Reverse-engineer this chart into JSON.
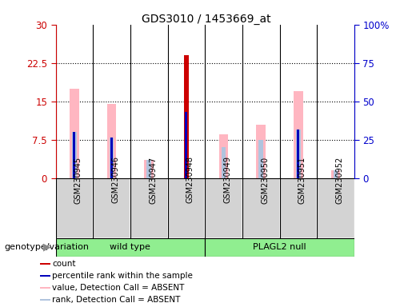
{
  "title": "GDS3010 / 1453669_at",
  "samples": [
    "GSM230945",
    "GSM230946",
    "GSM230947",
    "GSM230948",
    "GSM230949",
    "GSM230950",
    "GSM230951",
    "GSM230952"
  ],
  "ylim_left": [
    0,
    30
  ],
  "ylim_right": [
    0,
    100
  ],
  "yticks_left": [
    0,
    7.5,
    15,
    22.5,
    30
  ],
  "ytick_labels_left": [
    "0",
    "7.5",
    "15",
    "22.5",
    "30"
  ],
  "yticks_right": [
    0,
    25,
    50,
    75,
    100
  ],
  "ytick_labels_right": [
    "0",
    "25",
    "50",
    "75",
    "100%"
  ],
  "count_values": [
    0,
    0,
    0,
    24.0,
    0,
    0,
    0,
    0
  ],
  "count_color": "#cc0000",
  "rank_values": [
    9.0,
    8.0,
    0,
    13.0,
    0,
    0,
    9.5,
    0
  ],
  "rank_color": "#0000bb",
  "absent_value_values": [
    17.5,
    14.5,
    3.5,
    0,
    8.5,
    10.5,
    17.0,
    1.5
  ],
  "absent_value_color": "#ffb6c1",
  "absent_rank_values": [
    9.0,
    8.0,
    3.5,
    0,
    6.0,
    7.5,
    9.5,
    1.5
  ],
  "absent_rank_color": "#b0c4de",
  "plot_bg_color": "#ffffff",
  "sample_bg_color": "#d3d3d3",
  "left_axis_color": "#cc0000",
  "right_axis_color": "#0000cc",
  "legend_items": [
    {
      "color": "#cc0000",
      "label": "count"
    },
    {
      "color": "#0000bb",
      "label": "percentile rank within the sample"
    },
    {
      "color": "#ffb6c1",
      "label": "value, Detection Call = ABSENT"
    },
    {
      "color": "#b0c4de",
      "label": "rank, Detection Call = ABSENT"
    }
  ],
  "group_wt_label": "wild type",
  "group_pl_label": "PLAGL2 null",
  "group_color": "#90ee90",
  "genotype_label": "genotype/variation"
}
